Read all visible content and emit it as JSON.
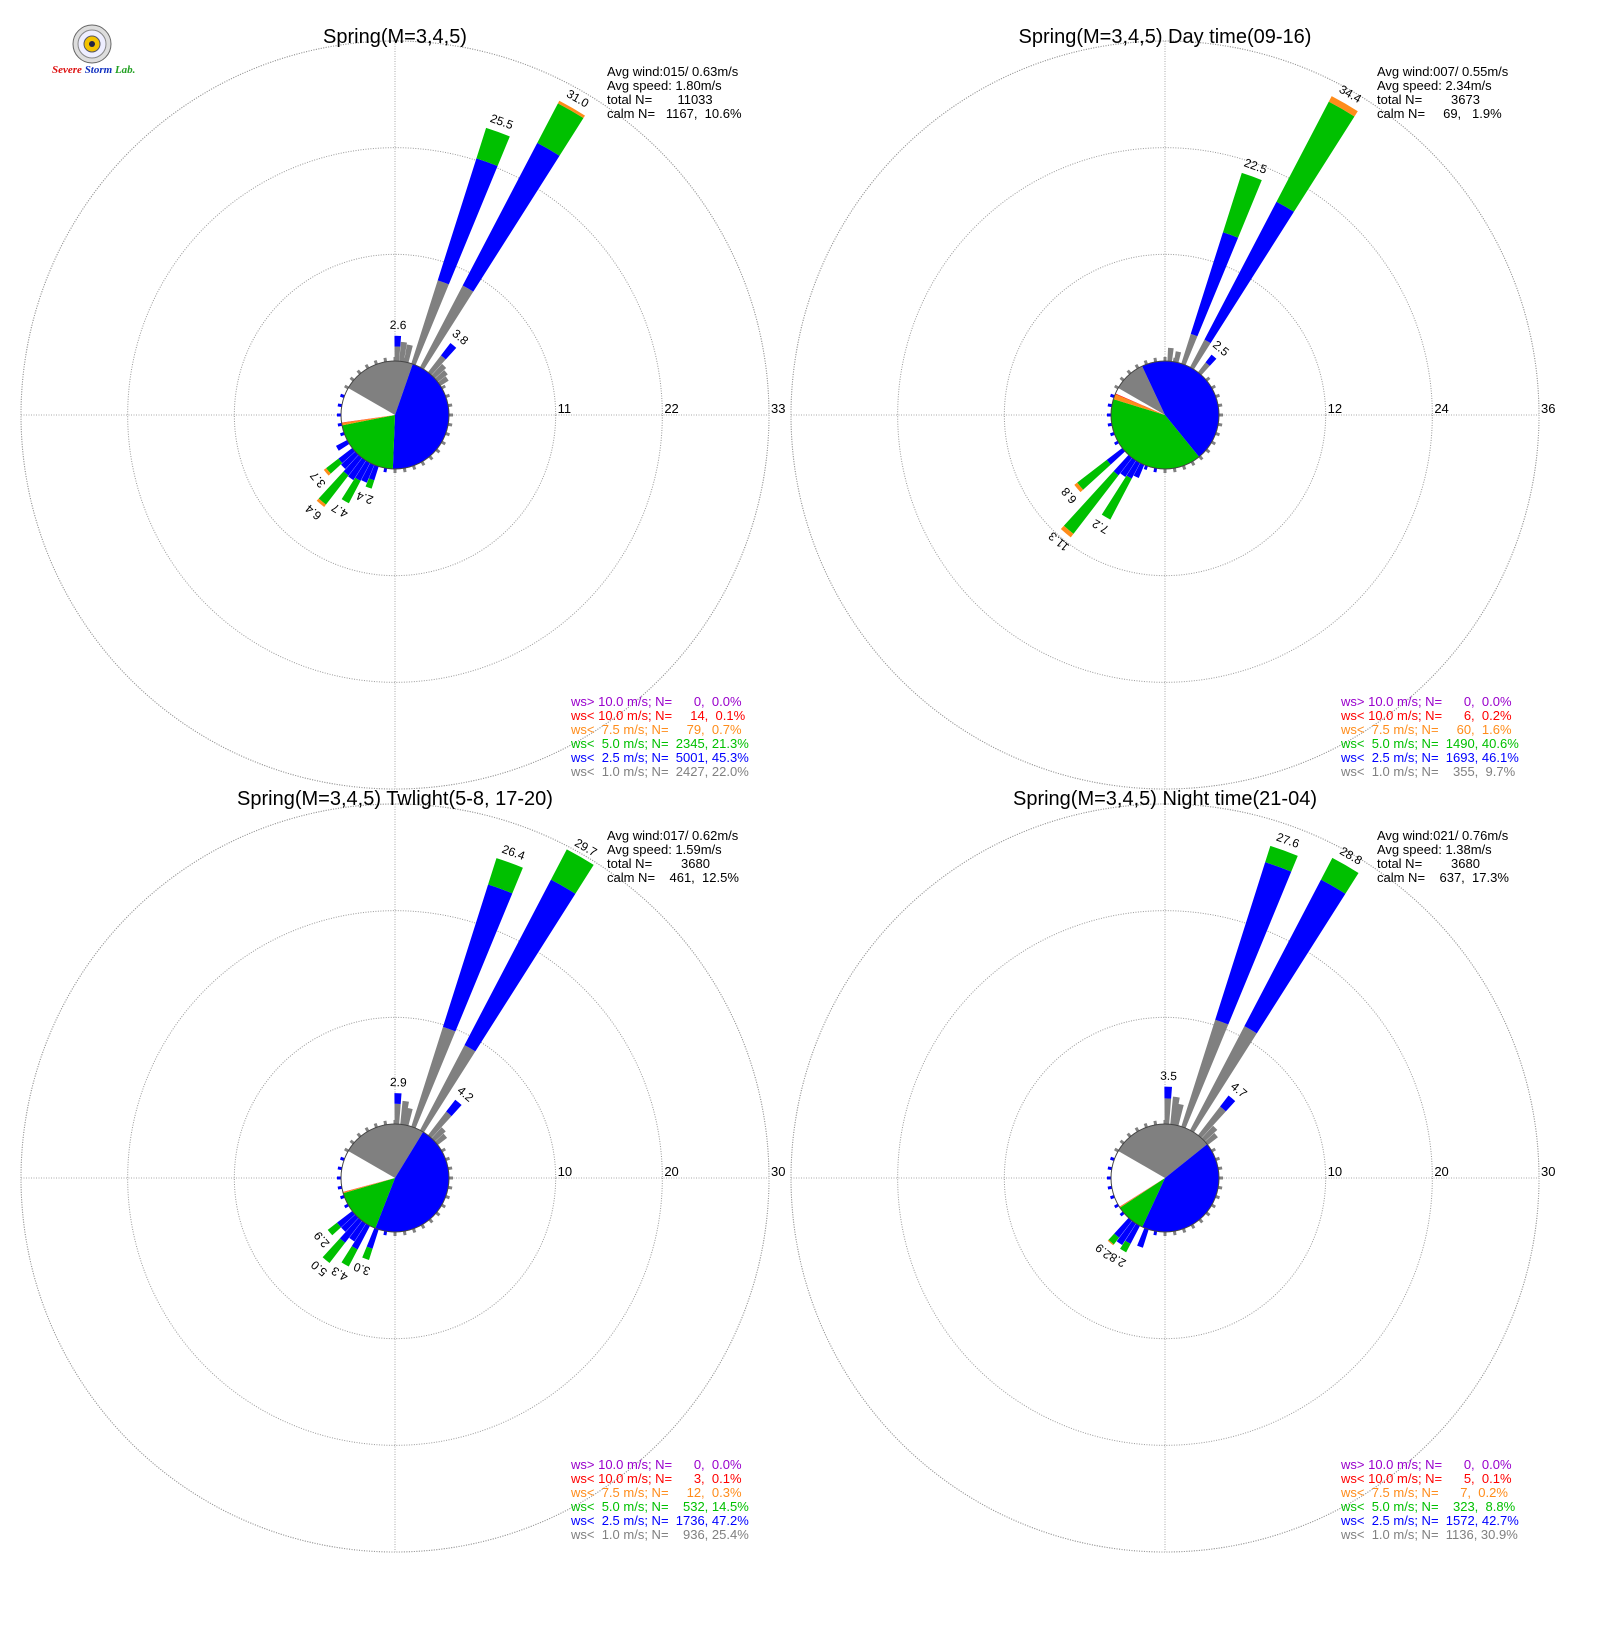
{
  "logo": {
    "text_severe": "Severe",
    "text_storm": "Storm",
    "text_lab": "Lab.",
    "colors": {
      "severe": "#d11",
      "storm": "#1030c0",
      "lab": "#22a022"
    }
  },
  "colors": {
    "gt10": "#9900cc",
    "lt10": "#ff0000",
    "lt7_5": "#ff8c1a",
    "lt5": "#00c000",
    "lt2_5": "#0000ff",
    "lt1": "#808080"
  },
  "chart_data": [
    {
      "type": "polar-bar (wind rose)",
      "title": "Spring(M=3,4,5)",
      "rings": [
        11,
        22,
        33
      ],
      "stats": [
        "Avg wind:015/ 0.63m/s",
        "Avg speed: 1.80m/s",
        "total N=       11033",
        "calm N=   1167,  10.6%"
      ],
      "legend": [
        "ws> 10.0 m/s; N=      0,  0.0%",
        "ws< 10.0 m/s; N=     14,  0.1%",
        "ws<  7.5 m/s; N=     79,  0.7%",
        "ws<  5.0 m/s; N=  2345, 21.3%",
        "ws<  2.5 m/s; N=  5001, 45.3%",
        "ws<  1.0 m/s; N=  2427, 22.0%"
      ],
      "pie": [
        {
          "band": "lt1",
          "pct": 22.0
        },
        {
          "band": "lt2_5",
          "pct": 45.3
        },
        {
          "band": "lt5",
          "pct": 21.3
        },
        {
          "band": "lt7_5",
          "pct": 0.7
        },
        {
          "band": "lt10",
          "pct": 0.1
        }
      ],
      "petals": [
        {
          "dir": 20,
          "total": 25.5,
          "label": "25.5",
          "bands": [
            {
              "band": "lt1",
              "value": 9.0
            },
            {
              "band": "lt2_5",
              "value": 13.2
            },
            {
              "band": "lt5",
              "value": 3.3
            }
          ]
        },
        {
          "dir": 30,
          "total": 31.0,
          "label": "31.0",
          "bands": [
            {
              "band": "lt1",
              "value": 9.5
            },
            {
              "band": "lt2_5",
              "value": 16.6
            },
            {
              "band": "lt5",
              "value": 4.6
            },
            {
              "band": "lt7_5",
              "value": 0.3
            }
          ]
        },
        {
          "dir": 2,
          "total": 2.6,
          "label": "2.6",
          "bands": [
            {
              "band": "lt1",
              "value": 1.5
            },
            {
              "band": "lt2_5",
              "value": 1.1
            }
          ]
        },
        {
          "dir": 7,
          "total": 2.0,
          "label": "",
          "bands": [
            {
              "band": "lt1",
              "value": 2.0
            }
          ]
        },
        {
          "dir": 12,
          "total": 1.8,
          "label": "",
          "bands": [
            {
              "band": "lt1",
              "value": 1.8
            }
          ]
        },
        {
          "dir": 40,
          "total": 3.8,
          "label": "3.8",
          "bands": [
            {
              "band": "lt1",
              "value": 2.2
            },
            {
              "band": "lt2_5",
              "value": 1.6
            }
          ]
        },
        {
          "dir": 45,
          "total": 1.6,
          "label": "",
          "bands": [
            {
              "band": "lt1",
              "value": 1.6
            }
          ]
        },
        {
          "dir": 50,
          "total": 1.3,
          "label": "",
          "bands": [
            {
              "band": "lt1",
              "value": 1.3
            }
          ]
        },
        {
          "dir": 55,
          "total": 1.0,
          "label": "",
          "bands": [
            {
              "band": "lt1",
              "value": 1.0
            }
          ]
        },
        {
          "dir": 200,
          "total": 2.4,
          "label": "2.4",
          "bands": [
            {
              "band": "lt2_5",
              "value": 1.5
            },
            {
              "band": "lt5",
              "value": 0.9
            }
          ]
        },
        {
          "dir": 205,
          "total": 2.0,
          "label": "",
          "bands": [
            {
              "band": "lt2_5",
              "value": 2.0
            }
          ]
        },
        {
          "dir": 210,
          "total": 4.7,
          "label": "4.7",
          "bands": [
            {
              "band": "lt2_5",
              "value": 2.1
            },
            {
              "band": "lt5",
              "value": 2.6
            }
          ]
        },
        {
          "dir": 215,
          "total": 2.4,
          "label": "",
          "bands": [
            {
              "band": "lt2_5",
              "value": 2.4
            }
          ]
        },
        {
          "dir": 220,
          "total": 6.4,
          "label": "6.4",
          "bands": [
            {
              "band": "lt2_5",
              "value": 2.3
            },
            {
              "band": "lt5",
              "value": 3.8
            },
            {
              "band": "lt7_5",
              "value": 0.3
            }
          ]
        },
        {
          "dir": 225,
          "total": 2.0,
          "label": "",
          "bands": [
            {
              "band": "lt2_5",
              "value": 2.0
            }
          ]
        },
        {
          "dir": 230,
          "total": 3.7,
          "label": "3.7",
          "bands": [
            {
              "band": "lt2_5",
              "value": 1.8
            },
            {
              "band": "lt5",
              "value": 1.6
            },
            {
              "band": "lt7_5",
              "value": 0.3
            }
          ]
        },
        {
          "dir": 240,
          "total": 1.3,
          "label": "",
          "bands": [
            {
              "band": "lt2_5",
              "value": 1.3
            }
          ]
        }
      ]
    },
    {
      "type": "polar-bar (wind rose)",
      "title": "Spring(M=3,4,5) Day time(09-16)",
      "rings": [
        12,
        24,
        36
      ],
      "stats": [
        "Avg wind:007/ 0.55m/s",
        "Avg speed: 2.34m/s",
        "total N=        3673",
        "calm N=     69,   1.9%"
      ],
      "legend": [
        "ws> 10.0 m/s; N=      0,  0.0%",
        "ws< 10.0 m/s; N=      6,  0.2%",
        "ws<  7.5 m/s; N=     60,  1.6%",
        "ws<  5.0 m/s; N=  1490, 40.6%",
        "ws<  2.5 m/s; N=  1693, 46.1%",
        "ws<  1.0 m/s; N=    355,  9.7%"
      ],
      "pie": [
        {
          "band": "lt1",
          "pct": 9.7
        },
        {
          "band": "lt2_5",
          "pct": 46.1
        },
        {
          "band": "lt5",
          "pct": 40.6
        },
        {
          "band": "lt7_5",
          "pct": 1.6
        },
        {
          "band": "lt10",
          "pct": 0.2
        }
      ],
      "petals": [
        {
          "dir": 20,
          "total": 22.5,
          "label": "22.5",
          "bands": [
            {
              "band": "lt1",
              "value": 3.5
            },
            {
              "band": "lt2_5",
              "value": 12.0
            },
            {
              "band": "lt5",
              "value": 7.0
            }
          ]
        },
        {
          "dir": 30,
          "total": 34.4,
          "label": "34.4",
          "bands": [
            {
              "band": "lt1",
              "value": 3.5
            },
            {
              "band": "lt2_5",
              "value": 17.5
            },
            {
              "band": "lt5",
              "value": 12.7
            },
            {
              "band": "lt7_5",
              "value": 0.7
            }
          ]
        },
        {
          "dir": 5,
          "total": 1.5,
          "label": "",
          "bands": [
            {
              "band": "lt1",
              "value": 1.5
            }
          ]
        },
        {
          "dir": 12,
          "total": 1.2,
          "label": "",
          "bands": [
            {
              "band": "lt1",
              "value": 1.2
            }
          ]
        },
        {
          "dir": 40,
          "total": 2.5,
          "label": "2.5",
          "bands": [
            {
              "band": "lt1",
              "value": 1.4
            },
            {
              "band": "lt2_5",
              "value": 1.1
            }
          ]
        },
        {
          "dir": 210,
          "total": 7.2,
          "label": "7.2",
          "bands": [
            {
              "band": "lt2_5",
              "value": 2.0
            },
            {
              "band": "lt5",
              "value": 5.2
            }
          ]
        },
        {
          "dir": 205,
          "total": 1.6,
          "label": "",
          "bands": [
            {
              "band": "lt2_5",
              "value": 1.6
            }
          ]
        },
        {
          "dir": 220,
          "total": 11.3,
          "label": "11.3",
          "bands": [
            {
              "band": "lt2_5",
              "value": 2.5
            },
            {
              "band": "lt5",
              "value": 8.3
            },
            {
              "band": "lt7_5",
              "value": 0.5
            }
          ]
        },
        {
          "dir": 230,
          "total": 6.8,
          "label": "6.8",
          "bands": [
            {
              "band": "lt2_5",
              "value": 2.2
            },
            {
              "band": "lt5",
              "value": 4.2
            },
            {
              "band": "lt7_5",
              "value": 0.4
            }
          ]
        },
        {
          "dir": 215,
          "total": 2.2,
          "label": "",
          "bands": [
            {
              "band": "lt2_5",
              "value": 2.2
            }
          ]
        }
      ]
    },
    {
      "type": "polar-bar (wind rose)",
      "title": "Spring(M=3,4,5) Twlight(5-8, 17-20)",
      "rings": [
        10,
        20,
        30
      ],
      "stats": [
        "Avg wind:017/ 0.62m/s",
        "Avg speed: 1.59m/s",
        "total N=        3680",
        "calm N=    461,  12.5%"
      ],
      "legend": [
        "ws> 10.0 m/s; N=      0,  0.0%",
        "ws< 10.0 m/s; N=      3,  0.1%",
        "ws<  7.5 m/s; N=     12,  0.3%",
        "ws<  5.0 m/s; N=    532, 14.5%",
        "ws<  2.5 m/s; N=  1736, 47.2%",
        "ws<  1.0 m/s; N=    936, 25.4%"
      ],
      "pie": [
        {
          "band": "lt1",
          "pct": 25.4
        },
        {
          "band": "lt2_5",
          "pct": 47.2
        },
        {
          "band": "lt5",
          "pct": 14.5
        },
        {
          "band": "lt7_5",
          "pct": 0.3
        },
        {
          "band": "lt10",
          "pct": 0.1
        }
      ],
      "petals": [
        {
          "dir": 20,
          "total": 26.4,
          "label": "26.4",
          "bands": [
            {
              "band": "lt1",
              "value": 9.8
            },
            {
              "band": "lt2_5",
              "value": 14.0
            },
            {
              "band": "lt5",
              "value": 2.6
            }
          ]
        },
        {
          "dir": 30,
          "total": 29.7,
          "label": "29.7",
          "bands": [
            {
              "band": "lt1",
              "value": 9.0
            },
            {
              "band": "lt2_5",
              "value": 17.5
            },
            {
              "band": "lt5",
              "value": 3.2
            }
          ]
        },
        {
          "dir": 2,
          "total": 2.9,
          "label": "2.9",
          "bands": [
            {
              "band": "lt1",
              "value": 1.9
            },
            {
              "band": "lt2_5",
              "value": 1.0
            }
          ]
        },
        {
          "dir": 8,
          "total": 2.2,
          "label": "",
          "bands": [
            {
              "band": "lt1",
              "value": 2.2
            }
          ]
        },
        {
          "dir": 12,
          "total": 1.6,
          "label": "",
          "bands": [
            {
              "band": "lt1",
              "value": 1.6
            }
          ]
        },
        {
          "dir": 40,
          "total": 4.2,
          "label": "4.2",
          "bands": [
            {
              "band": "lt1",
              "value": 2.8
            },
            {
              "band": "lt2_5",
              "value": 1.4
            }
          ]
        },
        {
          "dir": 45,
          "total": 1.4,
          "label": "",
          "bands": [
            {
              "band": "lt1",
              "value": 1.4
            }
          ]
        },
        {
          "dir": 50,
          "total": 1.1,
          "label": "",
          "bands": [
            {
              "band": "lt1",
              "value": 1.1
            }
          ]
        },
        {
          "dir": 200,
          "total": 3.0,
          "label": "3.0",
          "bands": [
            {
              "band": "lt2_5",
              "value": 1.9
            },
            {
              "band": "lt5",
              "value": 1.1
            }
          ]
        },
        {
          "dir": 210,
          "total": 4.3,
          "label": "4.3",
          "bands": [
            {
              "band": "lt2_5",
              "value": 2.5
            },
            {
              "band": "lt5",
              "value": 1.8
            }
          ]
        },
        {
          "dir": 215,
          "total": 2.0,
          "label": "",
          "bands": [
            {
              "band": "lt2_5",
              "value": 2.0
            }
          ]
        },
        {
          "dir": 220,
          "total": 5.0,
          "label": "5.0",
          "bands": [
            {
              "band": "lt2_5",
              "value": 2.6
            },
            {
              "band": "lt5",
              "value": 2.4
            }
          ]
        },
        {
          "dir": 230,
          "total": 2.9,
          "label": "2.9",
          "bands": [
            {
              "band": "lt2_5",
              "value": 1.8
            },
            {
              "band": "lt5",
              "value": 1.1
            }
          ]
        },
        {
          "dir": 225,
          "total": 1.8,
          "label": "",
          "bands": [
            {
              "band": "lt2_5",
              "value": 1.8
            }
          ]
        }
      ]
    },
    {
      "type": "polar-bar (wind rose)",
      "title": "Spring(M=3,4,5) Night time(21-04)",
      "rings": [
        10,
        20,
        30
      ],
      "stats": [
        "Avg wind:021/ 0.76m/s",
        "Avg speed: 1.38m/s",
        "total N=        3680",
        "calm N=    637,  17.3%"
      ],
      "legend": [
        "ws> 10.0 m/s; N=      0,  0.0%",
        "ws< 10.0 m/s; N=      5,  0.1%",
        "ws<  7.5 m/s; N=      7,  0.2%",
        "ws<  5.0 m/s; N=    323,  8.8%",
        "ws<  2.5 m/s; N=  1572, 42.7%",
        "ws<  1.0 m/s; N=  1136, 30.9%"
      ],
      "pie": [
        {
          "band": "lt1",
          "pct": 30.9
        },
        {
          "band": "lt2_5",
          "pct": 42.7
        },
        {
          "band": "lt5",
          "pct": 8.8
        },
        {
          "band": "lt7_5",
          "pct": 0.2
        },
        {
          "band": "lt10",
          "pct": 0.1
        }
      ],
      "petals": [
        {
          "dir": 20,
          "total": 27.6,
          "label": "27.6",
          "bands": [
            {
              "band": "lt1",
              "value": 10.5
            },
            {
              "band": "lt2_5",
              "value": 15.5
            },
            {
              "band": "lt5",
              "value": 1.6
            }
          ]
        },
        {
          "dir": 30,
          "total": 28.8,
          "label": "28.8",
          "bands": [
            {
              "band": "lt1",
              "value": 11.0
            },
            {
              "band": "lt2_5",
              "value": 15.5
            },
            {
              "band": "lt5",
              "value": 2.3
            }
          ]
        },
        {
          "dir": 2,
          "total": 3.5,
          "label": "3.5",
          "bands": [
            {
              "band": "lt1",
              "value": 2.4
            },
            {
              "band": "lt2_5",
              "value": 1.1
            }
          ]
        },
        {
          "dir": 8,
          "total": 2.6,
          "label": "",
          "bands": [
            {
              "band": "lt1",
              "value": 2.6
            }
          ]
        },
        {
          "dir": 12,
          "total": 2.0,
          "label": "",
          "bands": [
            {
              "band": "lt1",
              "value": 2.0
            }
          ]
        },
        {
          "dir": 40,
          "total": 4.7,
          "label": "4.7",
          "bands": [
            {
              "band": "lt1",
              "value": 3.4
            },
            {
              "band": "lt2_5",
              "value": 1.3
            }
          ]
        },
        {
          "dir": 45,
          "total": 1.6,
          "label": "",
          "bands": [
            {
              "band": "lt1",
              "value": 1.6
            }
          ]
        },
        {
          "dir": 50,
          "total": 1.2,
          "label": "",
          "bands": [
            {
              "band": "lt1",
              "value": 1.2
            }
          ]
        },
        {
          "dir": 210,
          "total": 2.8,
          "label": "2.8",
          "bands": [
            {
              "band": "lt2_5",
              "value": 1.9
            },
            {
              "band": "lt5",
              "value": 0.9
            }
          ]
        },
        {
          "dir": 220,
          "total": 2.9,
          "label": "2.9",
          "bands": [
            {
              "band": "lt2_5",
              "value": 2.0
            },
            {
              "band": "lt5",
              "value": 0.8
            },
            {
              "band": "lt7_5",
              "value": 0.1
            }
          ]
        },
        {
          "dir": 215,
          "total": 2.4,
          "label": "",
          "bands": [
            {
              "band": "lt2_5",
              "value": 2.4
            }
          ]
        },
        {
          "dir": 200,
          "total": 1.8,
          "label": "",
          "bands": [
            {
              "band": "lt2_5",
              "value": 1.8
            }
          ]
        }
      ]
    }
  ]
}
